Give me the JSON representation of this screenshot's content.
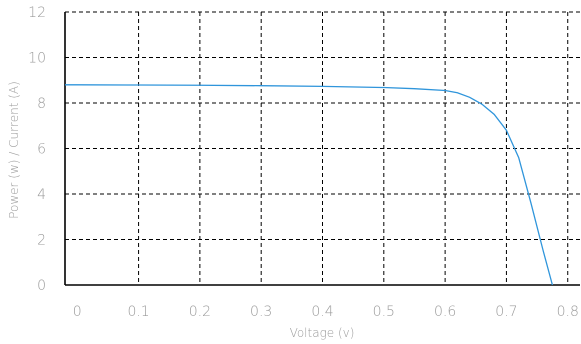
{
  "chart_data": {
    "type": "line",
    "xlabel": "Voltage (v)",
    "ylabel": "Power (w) / Current (A)",
    "xlim": [
      -0.02,
      0.82
    ],
    "ylim": [
      0,
      12
    ],
    "x_ticks": [
      "0",
      "0.1",
      "0.2",
      "0.3",
      "0.4",
      "0.5",
      "0.6",
      "0.7",
      "0.8"
    ],
    "y_ticks": [
      "0",
      "2",
      "4",
      "6",
      "8",
      "10",
      "12"
    ],
    "grid": true,
    "series": [
      {
        "color": "#2f95db",
        "x": [
          -0.02,
          0.0,
          0.1,
          0.2,
          0.3,
          0.4,
          0.5,
          0.55,
          0.6,
          0.62,
          0.64,
          0.66,
          0.68,
          0.7,
          0.72,
          0.74,
          0.76,
          0.775
        ],
        "y": [
          8.8,
          8.8,
          8.79,
          8.78,
          8.76,
          8.73,
          8.68,
          8.63,
          8.55,
          8.45,
          8.25,
          7.95,
          7.5,
          6.8,
          5.6,
          3.6,
          1.5,
          0.0
        ]
      }
    ]
  }
}
